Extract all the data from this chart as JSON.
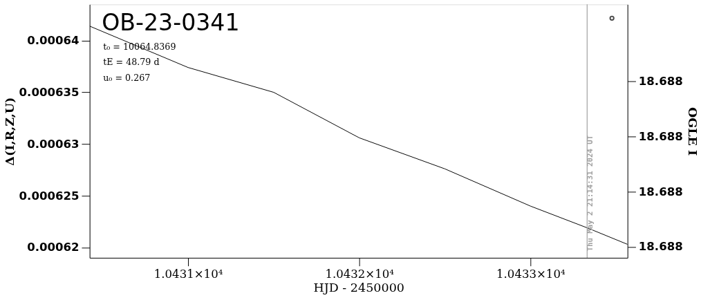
{
  "chart_data": {
    "type": "line",
    "title": "OB-23-0341",
    "xlabel": "HJD - 2450000",
    "ylabel": "Δ(I,R,Z,U)",
    "y2label": "OGLE I",
    "x": [
      10430.425,
      10431,
      10431.5,
      10432,
      10432.5,
      10433,
      10433.331,
      10433.567
    ],
    "series": [
      {
        "color": "#000000",
        "values": [
          0.0006414,
          0.0006374,
          0.000635,
          0.0006306,
          0.0006276,
          0.000624,
          0.0006219,
          0.0006203
        ]
      },
      {
        "type": "scatter",
        "axis": "y2",
        "color": "#000000",
        "marker": "circle",
        "x": [
          10433.476
        ],
        "values": [
          18.68757
        ]
      }
    ],
    "xlim": [
      10430.425,
      10433.567
    ],
    "xticks": [
      {
        "value": 10431,
        "label": "1.0431×10⁴"
      },
      {
        "value": 10432,
        "label": "1.0432×10⁴"
      },
      {
        "value": 10433,
        "label": "1.0433×10⁴"
      }
    ],
    "ylim": [
      0.000619,
      0.0006435
    ],
    "yticks": [
      0.00062,
      0.000625,
      0.00063,
      0.000635,
      0.00064
    ],
    "y2lim": [
      18.68844,
      18.68752
    ],
    "y2ticks": [
      {
        "value": 18.6884,
        "label": "18.688"
      },
      {
        "value": 18.6882,
        "label": "18.688"
      },
      {
        "value": 18.688,
        "label": "18.688"
      },
      {
        "value": 18.6878,
        "label": "18.688"
      }
    ],
    "ref_lines": [
      {
        "axis": "x",
        "value": 10433.331,
        "color": "#a0a0a0"
      }
    ],
    "annotations": [
      "t₀ = 10064.8369",
      "tE = 48.79 d",
      "u₀ = 0.267",
      {
        "text": "Thu May  2 21:14:31 2024 UT",
        "x": 10433.331,
        "y": 0.0006195
      }
    ],
    "grid": false,
    "line_style": "solid"
  }
}
